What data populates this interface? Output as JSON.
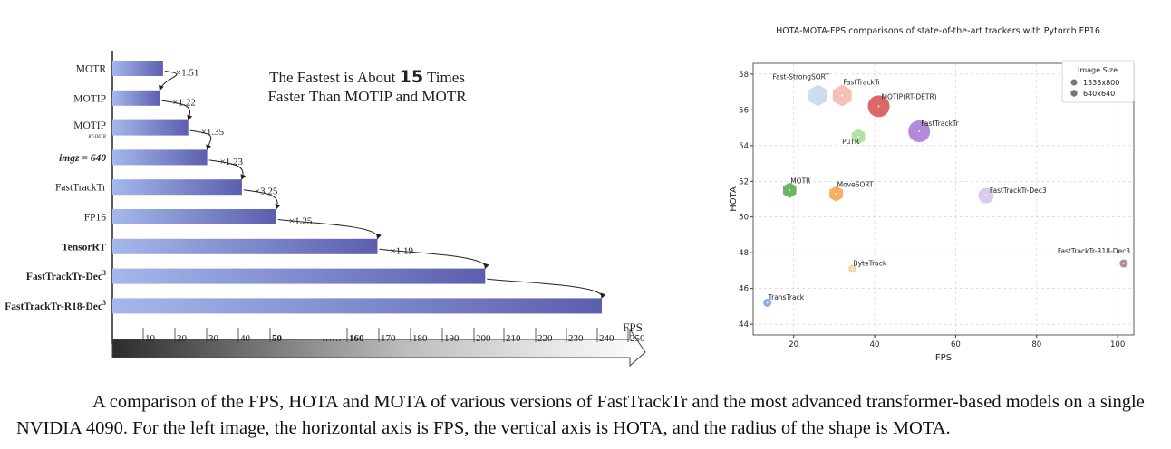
{
  "chart_data": [
    {
      "type": "bar",
      "orientation": "horizontal",
      "headline_line1_prefix": "The Fastest is About ",
      "headline_number": "15",
      "headline_line1_suffix": " Times",
      "headline_line2": "Faster Than MOTIP and MOTR",
      "categories": [
        "MOTR",
        "MOTIP",
        "MOTIP",
        "imgz = 640",
        "FastTrackTr",
        "FP16",
        "TensorRT",
        "FastTrackTr-Dec",
        "FastTrackTr-R18-Dec"
      ],
      "category_subscripts": [
        "",
        "",
        "RT-DETR",
        "",
        "",
        "",
        "",
        "",
        ""
      ],
      "category_superscripts": [
        "",
        "",
        "",
        "",
        "",
        "",
        "",
        "3",
        "3"
      ],
      "values": [
        16,
        15,
        24,
        30,
        41,
        51,
        165,
        201,
        240
      ],
      "speedup_labels": [
        "",
        "×1.51",
        "×1.22",
        "×1.35",
        "×1.23",
        "×3.25",
        "×1.25",
        "×1.19",
        ""
      ],
      "xlabel": "FPS",
      "ticks": [
        "10",
        "20",
        "30",
        "40",
        "50",
        "……",
        "160",
        "170",
        "180",
        "190",
        "200",
        "210",
        "220",
        "230",
        "240",
        "250"
      ],
      "bold_ticks": [
        "50",
        "160"
      ]
    },
    {
      "type": "scatter",
      "title": "HOTA-MOTA-FPS comparisons of state-of-the-art trackers with Pytorch FP16",
      "xlabel": "FPS",
      "ylabel": "HOTA",
      "xlim": [
        10,
        104
      ],
      "ylim": [
        43.4,
        58.6
      ],
      "xticks": [
        20,
        40,
        60,
        80,
        100
      ],
      "yticks": [
        44,
        46,
        48,
        50,
        52,
        54,
        56,
        58
      ],
      "grid": true,
      "legend_title": "Image Size",
      "legend_position": "top-right",
      "legend_items": [
        {
          "label": "1333x800",
          "marker": "circle"
        },
        {
          "label": "640x640",
          "marker": "hexagon"
        }
      ],
      "points": [
        {
          "name": "Fast-StrongSORT",
          "fps": 26,
          "hota": 56.8,
          "size": "large",
          "shape": "hexagon",
          "color": "#c8d8f0"
        },
        {
          "name": "FastTrackTr",
          "fps": 32,
          "hota": 56.8,
          "size": "large",
          "shape": "hexagon",
          "color": "#f5b9b1"
        },
        {
          "name": "MOTIP(RT-DETR)",
          "fps": 41,
          "hota": 56.2,
          "size": "large",
          "shape": "circle",
          "color": "#d9585a"
        },
        {
          "name": "FastTrackTr",
          "fps": 51,
          "hota": 54.8,
          "size": "large",
          "shape": "circle",
          "color": "#a97ed3"
        },
        {
          "name": "PuTR",
          "fps": 36,
          "hota": 54.5,
          "size": "medium",
          "shape": "hexagon",
          "color": "#a8e19a"
        },
        {
          "name": "MOTR",
          "fps": 19,
          "hota": 51.5,
          "size": "medium",
          "shape": "hexagon",
          "color": "#5aad53"
        },
        {
          "name": "MoveSORT",
          "fps": 30.5,
          "hota": 51.3,
          "size": "medium",
          "shape": "hexagon",
          "color": "#f4a652"
        },
        {
          "name": "FastTrackTr-Dec3",
          "fps": 67.5,
          "hota": 51.2,
          "size": "medium",
          "shape": "circle",
          "color": "#d6c7ec"
        },
        {
          "name": "FastTrackTr-R18-Dec3",
          "fps": 101.5,
          "hota": 47.4,
          "size": "small",
          "shape": "circle",
          "color": "#a98581"
        },
        {
          "name": "ByteTrack",
          "fps": 34.5,
          "hota": 47.1,
          "size": "small",
          "shape": "circle",
          "color": "#f7cfa3"
        },
        {
          "name": "TransTrack",
          "fps": 13.5,
          "hota": 45.2,
          "size": "small",
          "shape": "circle",
          "color": "#7aa6dc"
        }
      ]
    }
  ],
  "caption": {
    "text": "A comparison of the FPS, HOTA and MOTA of various versions of FastTrackTr and the most advanced transformer-based models on a single NVIDIA 4090. For the left image, the horizontal axis is FPS, the vertical axis is HOTA, and the radius of the shape is MOTA."
  }
}
